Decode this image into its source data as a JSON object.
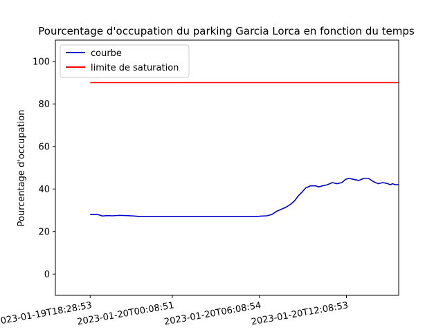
{
  "chart_data": {
    "type": "line",
    "title": "Pourcentage d'occupation du parking Garcia Lorca en fonction du temps",
    "xlabel": "",
    "ylabel": "Pourcentage d'occupation",
    "ylim": [
      -10,
      110
    ],
    "yticks": [
      0,
      20,
      40,
      60,
      80,
      100
    ],
    "xlim": [
      "2023-01-19T16:05:00",
      "2023-01-20T15:45:00"
    ],
    "xticks": [
      {
        "value": "2023-01-19T18:28:53",
        "label": "2023-01-19T18:28:53"
      },
      {
        "value": "2023-01-20T00:08:51",
        "label": "2023-01-20T00:08:51"
      },
      {
        "value": "2023-01-20T06:08:54",
        "label": "2023-01-20T06:08:54"
      },
      {
        "value": "2023-01-20T12:08:53",
        "label": "2023-01-20T12:08:53"
      }
    ],
    "grid": false,
    "legend_position": "top-left",
    "series": [
      {
        "name": "courbe",
        "color": "#0000cc",
        "x": [
          "2023-01-19T18:28:53",
          "2023-01-19T19:00:00",
          "2023-01-19T19:20:00",
          "2023-01-19T19:40:00",
          "2023-01-19T20:00:00",
          "2023-01-19T20:30:00",
          "2023-01-19T21:00:00",
          "2023-01-19T21:30:00",
          "2023-01-19T22:00:00",
          "2023-01-20T00:00:00",
          "2023-01-20T03:00:00",
          "2023-01-20T05:55:00",
          "2023-01-20T06:10:00",
          "2023-01-20T06:40:00",
          "2023-01-20T07:00:00",
          "2023-01-20T07:20:00",
          "2023-01-20T07:40:00",
          "2023-01-20T08:00:00",
          "2023-01-20T08:20:00",
          "2023-01-20T08:35:00",
          "2023-01-20T08:50:00",
          "2023-01-20T09:05:00",
          "2023-01-20T09:20:00",
          "2023-01-20T09:40:00",
          "2023-01-20T10:00:00",
          "2023-01-20T10:15:00",
          "2023-01-20T10:30:00",
          "2023-01-20T10:50:00",
          "2023-01-20T11:10:00",
          "2023-01-20T11:30:00",
          "2023-01-20T11:50:00",
          "2023-01-20T12:05:00",
          "2023-01-20T12:20:00",
          "2023-01-20T12:40:00",
          "2023-01-20T13:00:00",
          "2023-01-20T13:20:00",
          "2023-01-20T13:40:00",
          "2023-01-20T14:00:00",
          "2023-01-20T14:20:00",
          "2023-01-20T14:40:00",
          "2023-01-20T15:00:00",
          "2023-01-20T15:10:00",
          "2023-01-20T15:20:00",
          "2023-01-20T15:30:00",
          "2023-01-20T15:45:00"
        ],
        "y": [
          28,
          28,
          27.3,
          27.5,
          27.4,
          27.6,
          27.5,
          27.3,
          27,
          27,
          27,
          27,
          27.2,
          27.4,
          28,
          29.5,
          30.5,
          31.5,
          33,
          34.5,
          36.8,
          38.5,
          40.5,
          41.5,
          41.5,
          41,
          41.5,
          42,
          43,
          42.5,
          43,
          44.5,
          45,
          44.5,
          44,
          45,
          45,
          43.5,
          42.5,
          43,
          42.5,
          42,
          42.5,
          42,
          42
        ]
      },
      {
        "name": "limite de saturation",
        "color": "#ff0000",
        "x": [
          "2023-01-19T18:28:53",
          "2023-01-20T15:45:00"
        ],
        "y": [
          90,
          90
        ]
      }
    ]
  }
}
